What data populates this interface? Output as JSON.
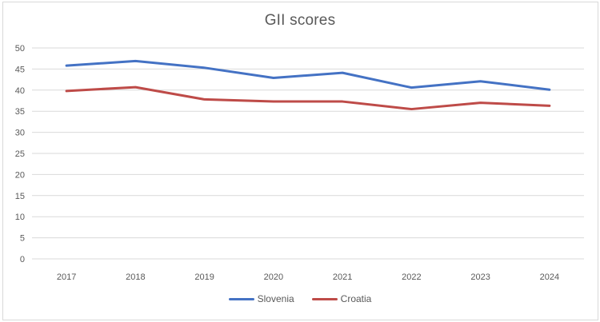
{
  "chart_data": {
    "type": "line",
    "title": "GII scores",
    "categories": [
      "2017",
      "2018",
      "2019",
      "2020",
      "2021",
      "2022",
      "2023",
      "2024"
    ],
    "series": [
      {
        "name": "Slovenia",
        "color": "#4472C4",
        "values": [
          45.8,
          46.9,
          45.3,
          42.9,
          44.1,
          40.6,
          42.1,
          40.1
        ]
      },
      {
        "name": "Croatia",
        "color": "#BE4B48",
        "values": [
          39.8,
          40.7,
          37.8,
          37.3,
          37.3,
          35.5,
          37.0,
          36.3
        ]
      }
    ],
    "xlabel": "",
    "ylabel": "",
    "ylim": [
      0,
      50
    ],
    "yticks": [
      0,
      5,
      10,
      15,
      20,
      25,
      30,
      35,
      40,
      45,
      50
    ],
    "grid": "horizontal",
    "legend_position": "bottom",
    "colors": {
      "text": "#595959",
      "grid": "#d9d9d9",
      "frame_border": "#d9d9d9",
      "background": "#ffffff"
    }
  }
}
